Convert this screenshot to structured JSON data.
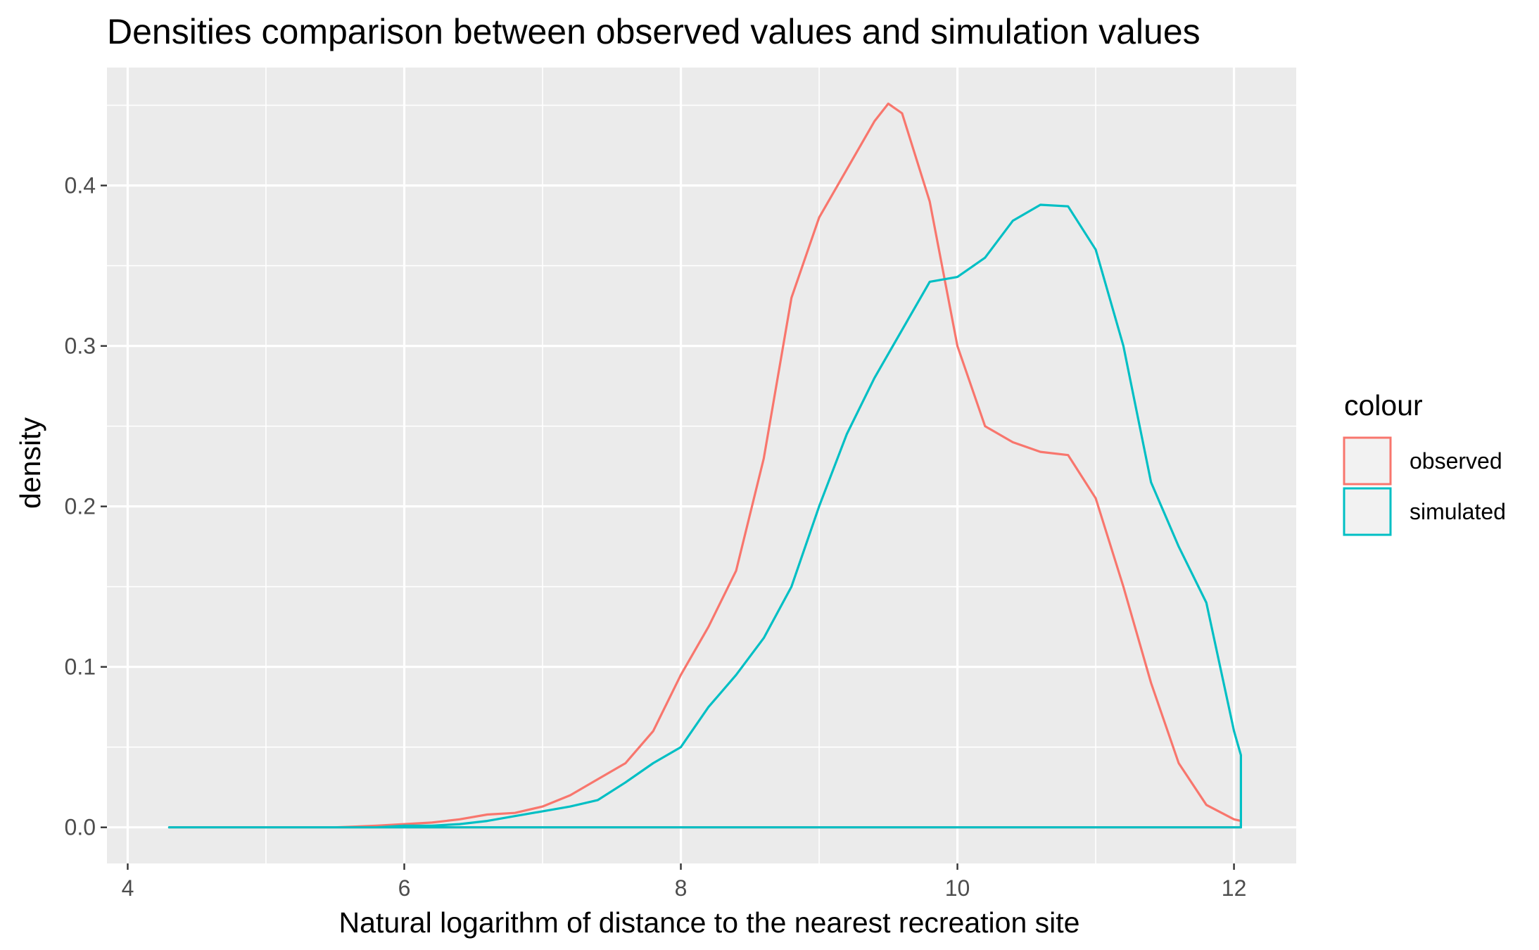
{
  "chart_data": {
    "type": "line",
    "title": "Densities comparison between observed values and simulation values",
    "xlabel": "Natural logarithm of distance to the nearest recreation site",
    "ylabel": "density",
    "xlim": [
      3.85,
      12.45
    ],
    "ylim": [
      -0.0225,
      0.4735
    ],
    "x_ticks": [
      4,
      6,
      8,
      10,
      12
    ],
    "x_tick_labels": [
      "4",
      "6",
      "8",
      "10",
      "12"
    ],
    "y_ticks": [
      0.0,
      0.1,
      0.2,
      0.3,
      0.4
    ],
    "y_tick_labels": [
      "0.0",
      "0.1",
      "0.2",
      "0.3",
      "0.4"
    ],
    "grid": true,
    "legend_position": "right",
    "legend_title": "colour",
    "series": [
      {
        "name": "observed",
        "color": "#F8766D",
        "x": [
          4.3,
          4.6,
          5.0,
          5.5,
          5.8,
          6.0,
          6.2,
          6.4,
          6.6,
          6.8,
          7.0,
          7.2,
          7.4,
          7.6,
          7.8,
          8.0,
          8.2,
          8.4,
          8.6,
          8.8,
          9.0,
          9.2,
          9.4,
          9.5,
          9.6,
          9.8,
          10.0,
          10.2,
          10.4,
          10.6,
          10.8,
          11.0,
          11.2,
          11.4,
          11.6,
          11.8,
          12.0,
          12.05,
          12.05,
          4.3
        ],
        "y": [
          0.0,
          0.0,
          0.0,
          0.0,
          0.001,
          0.002,
          0.003,
          0.005,
          0.008,
          0.009,
          0.013,
          0.02,
          0.03,
          0.04,
          0.06,
          0.095,
          0.125,
          0.16,
          0.23,
          0.33,
          0.38,
          0.41,
          0.44,
          0.451,
          0.445,
          0.39,
          0.3,
          0.25,
          0.24,
          0.234,
          0.232,
          0.205,
          0.15,
          0.09,
          0.04,
          0.014,
          0.005,
          0.004,
          0.0,
          0.0
        ]
      },
      {
        "name": "simulated",
        "color": "#00BFC4",
        "x": [
          4.3,
          5.0,
          5.5,
          5.8,
          6.0,
          6.2,
          6.4,
          6.6,
          6.8,
          7.0,
          7.2,
          7.4,
          7.6,
          7.8,
          8.0,
          8.2,
          8.4,
          8.6,
          8.8,
          9.0,
          9.2,
          9.4,
          9.6,
          9.8,
          10.0,
          10.2,
          10.4,
          10.6,
          10.8,
          11.0,
          11.2,
          11.4,
          11.6,
          11.8,
          12.0,
          12.05,
          12.05,
          4.3
        ],
        "y": [
          0.0,
          0.0,
          0.0,
          0.0,
          0.001,
          0.001,
          0.002,
          0.004,
          0.007,
          0.01,
          0.013,
          0.017,
          0.028,
          0.04,
          0.05,
          0.075,
          0.095,
          0.118,
          0.15,
          0.2,
          0.245,
          0.28,
          0.31,
          0.34,
          0.343,
          0.355,
          0.378,
          0.388,
          0.387,
          0.36,
          0.3,
          0.215,
          0.175,
          0.14,
          0.06,
          0.045,
          0.0,
          0.0
        ]
      }
    ]
  }
}
